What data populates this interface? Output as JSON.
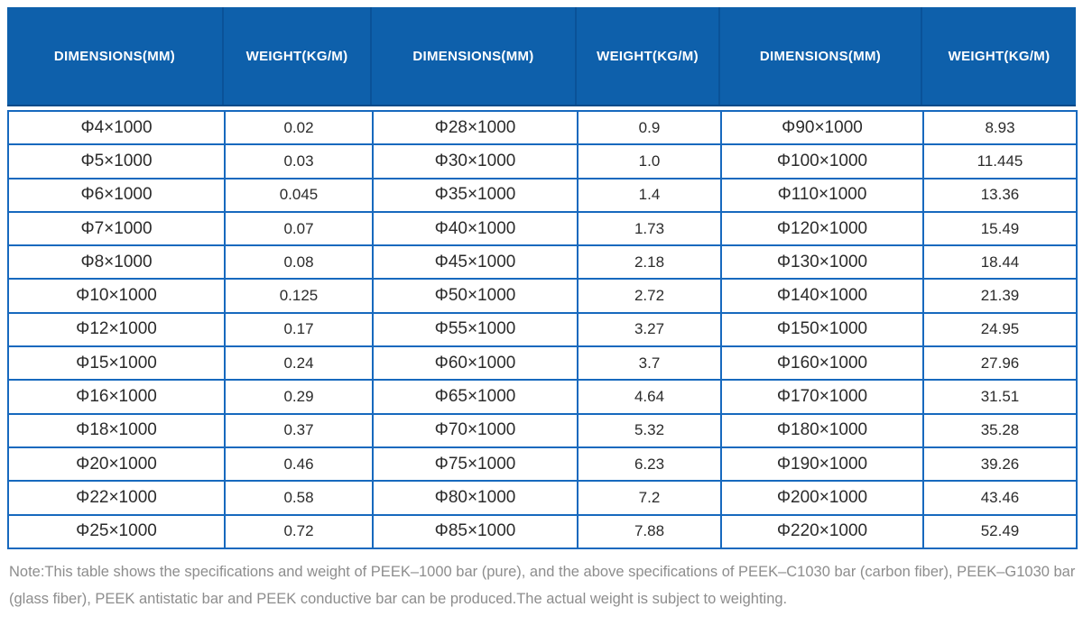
{
  "colors": {
    "header_bg": "#0e60ab",
    "header_divider": "#0a5298",
    "header_edge": "#0b4a88",
    "border_blue": "#1769be",
    "cell_text": "#2b2b2b",
    "note_text": "#8d8d8d"
  },
  "table": {
    "header": {
      "columns": [
        "DIMENSIONS(MM)",
        "WEIGHT(KG/M)",
        "DIMENSIONS(MM)",
        "WEIGHT(KG/M)",
        "DIMENSIONS(MM)",
        "WEIGHT(KG/M)"
      ]
    },
    "rows": [
      [
        "Φ4×1000",
        "0.02",
        "Φ28×1000",
        "0.9",
        "Φ90×1000",
        "8.93"
      ],
      [
        "Φ5×1000",
        "0.03",
        "Φ30×1000",
        "1.0",
        "Φ100×1000",
        "11.445"
      ],
      [
        "Φ6×1000",
        "0.045",
        "Φ35×1000",
        "1.4",
        "Φ110×1000",
        "13.36"
      ],
      [
        "Φ7×1000",
        "0.07",
        "Φ40×1000",
        "1.73",
        "Φ120×1000",
        "15.49"
      ],
      [
        "Φ8×1000",
        "0.08",
        "Φ45×1000",
        "2.18",
        "Φ130×1000",
        "18.44"
      ],
      [
        "Φ10×1000",
        "0.125",
        "Φ50×1000",
        "2.72",
        "Φ140×1000",
        "21.39"
      ],
      [
        "Φ12×1000",
        "0.17",
        "Φ55×1000",
        "3.27",
        "Φ150×1000",
        "24.95"
      ],
      [
        "Φ15×1000",
        "0.24",
        "Φ60×1000",
        "3.7",
        "Φ160×1000",
        "27.96"
      ],
      [
        "Φ16×1000",
        "0.29",
        "Φ65×1000",
        "4.64",
        "Φ170×1000",
        "31.51"
      ],
      [
        "Φ18×1000",
        "0.37",
        "Φ70×1000",
        "5.32",
        "Φ180×1000",
        "35.28"
      ],
      [
        "Φ20×1000",
        "0.46",
        "Φ75×1000",
        "6.23",
        "Φ190×1000",
        "39.26"
      ],
      [
        "Φ22×1000",
        "0.58",
        "Φ80×1000",
        "7.2",
        "Φ200×1000",
        "43.46"
      ],
      [
        "Φ25×1000",
        "0.72",
        "Φ85×1000",
        "7.88",
        "Φ220×1000",
        "52.49"
      ]
    ]
  },
  "note": "Note:This table shows the specifications and weight of PEEK–1000 bar (pure), and the above specifications of PEEK–C1030 bar (carbon fiber), PEEK–G1030 bar (glass fiber), PEEK antistatic bar and PEEK conductive bar can be produced.The actual weight is subject to weighting."
}
